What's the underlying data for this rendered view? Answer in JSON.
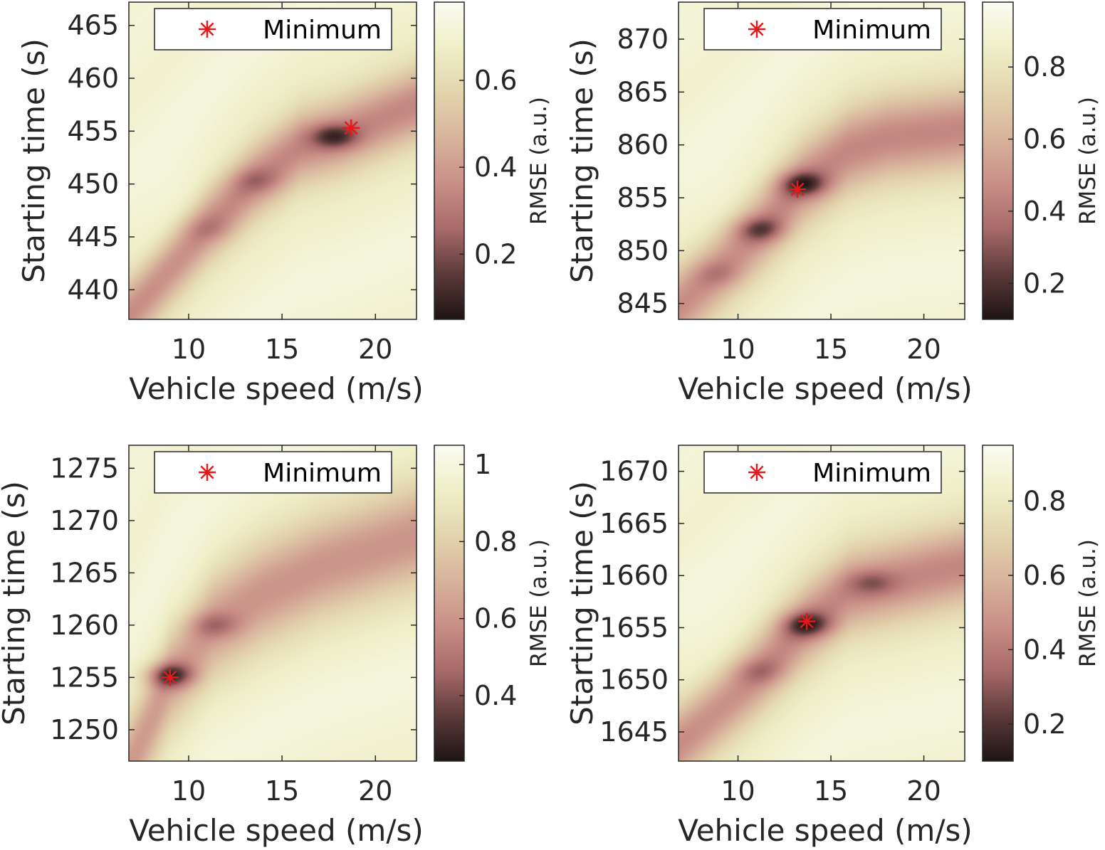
{
  "colors": {
    "marker": "#e31a1c",
    "axis": "#262626",
    "colormap": [
      "#1e1414",
      "#5c3a3a",
      "#a86a6a",
      "#c98f87",
      "#d8b39c",
      "#e3d4ad",
      "#efefc8",
      "#fbfbf2"
    ]
  },
  "chart_data": [
    {
      "type": "heatmap",
      "xlabel": "Vehicle speed (m/s)",
      "ylabel": "Starting time (s)",
      "colorbar_label": "RMSE (a.u.)",
      "xlim": [
        6.8,
        22.2
      ],
      "ylim": [
        437.2,
        467.2
      ],
      "xticks": [
        10,
        15,
        20
      ],
      "yticks": [
        440,
        445,
        450,
        455,
        460,
        465
      ],
      "colorbar_range": [
        0.05,
        0.78
      ],
      "colorbar_ticks": [
        0.2,
        0.4,
        0.6
      ],
      "valley": {
        "points": [
          [
            8.5,
            441
          ],
          [
            11,
            446
          ],
          [
            13.5,
            450.2
          ],
          [
            16,
            453.5
          ],
          [
            18,
            454.5
          ],
          [
            22.2,
            457.5
          ]
        ],
        "width_s": 5.5,
        "depth": 0.55
      },
      "local_minima": [
        {
          "x": 17.8,
          "y": 454.5,
          "depth": 0.35
        },
        {
          "x": 13.6,
          "y": 450.3,
          "depth": 0.15
        },
        {
          "x": 11.1,
          "y": 445.8,
          "depth": 0.1
        }
      ],
      "minimum": {
        "x": 18.7,
        "y": 455.3
      },
      "legend": {
        "label": "Minimum",
        "position": "top"
      }
    },
    {
      "type": "heatmap",
      "xlabel": "Vehicle speed (m/s)",
      "ylabel": "Starting time (s)",
      "colorbar_label": "RMSE (a.u.)",
      "xlim": [
        6.8,
        22.2
      ],
      "ylim": [
        843.5,
        873.5
      ],
      "xticks": [
        10,
        15,
        20
      ],
      "yticks": [
        845,
        850,
        855,
        860,
        865,
        870
      ],
      "colorbar_range": [
        0.1,
        0.98
      ],
      "colorbar_ticks": [
        0.2,
        0.4,
        0.6,
        0.8
      ],
      "valley": {
        "points": [
          [
            8.5,
            847.5
          ],
          [
            11.2,
            852
          ],
          [
            13.5,
            856.3
          ],
          [
            16,
            859.5
          ],
          [
            18,
            860.6
          ],
          [
            22.2,
            861.5
          ]
        ],
        "width_s": 6,
        "depth": 0.55
      },
      "local_minima": [
        {
          "x": 13.5,
          "y": 856.3,
          "depth": 0.4
        },
        {
          "x": 11.2,
          "y": 852,
          "depth": 0.3
        },
        {
          "x": 8.9,
          "y": 847.8,
          "depth": 0.12
        }
      ],
      "minimum": {
        "x": 13.2,
        "y": 855.8
      },
      "legend": {
        "label": "Minimum",
        "position": "top"
      }
    },
    {
      "type": "heatmap",
      "xlabel": "Vehicle speed (m/s)",
      "ylabel": "Starting time (s)",
      "colorbar_label": "RMSE (a.u.)",
      "xlim": [
        6.8,
        22.2
      ],
      "ylim": [
        1247,
        1277.2
      ],
      "xticks": [
        10,
        15,
        20
      ],
      "yticks": [
        1250,
        1255,
        1260,
        1265,
        1270,
        1275
      ],
      "colorbar_range": [
        0.23,
        1.05
      ],
      "colorbar_ticks": [
        0.4,
        0.6,
        0.8,
        1
      ],
      "valley": {
        "points": [
          [
            7.2,
            1248
          ],
          [
            9,
            1255
          ],
          [
            11.3,
            1260
          ],
          [
            14,
            1263
          ],
          [
            17,
            1265.5
          ],
          [
            22.2,
            1268.5
          ]
        ],
        "width_s": 7,
        "depth": 0.5
      },
      "local_minima": [
        {
          "x": 9,
          "y": 1255.2,
          "depth": 0.45
        },
        {
          "x": 11.4,
          "y": 1260,
          "depth": 0.2
        }
      ],
      "minimum": {
        "x": 9,
        "y": 1255
      },
      "legend": {
        "label": "Minimum",
        "position": "top"
      }
    },
    {
      "type": "heatmap",
      "xlabel": "Vehicle speed (m/s)",
      "ylabel": "Starting time (s)",
      "colorbar_label": "RMSE (a.u.)",
      "xlim": [
        6.8,
        22.2
      ],
      "ylim": [
        1642.2,
        1672.5
      ],
      "xticks": [
        10,
        15,
        20
      ],
      "yticks": [
        1645,
        1650,
        1655,
        1660,
        1665,
        1670
      ],
      "colorbar_range": [
        0.1,
        0.95
      ],
      "colorbar_ticks": [
        0.2,
        0.4,
        0.6,
        0.8
      ],
      "valley": {
        "points": [
          [
            8.5,
            1646.5
          ],
          [
            11,
            1650.5
          ],
          [
            13.7,
            1655.3
          ],
          [
            16,
            1658.5
          ],
          [
            18,
            1659.3
          ],
          [
            22.2,
            1661
          ]
        ],
        "width_s": 6,
        "depth": 0.55
      },
      "local_minima": [
        {
          "x": 13.7,
          "y": 1655.3,
          "depth": 0.4
        },
        {
          "x": 17.2,
          "y": 1659.3,
          "depth": 0.2
        },
        {
          "x": 11.2,
          "y": 1650.8,
          "depth": 0.15
        }
      ],
      "minimum": {
        "x": 13.7,
        "y": 1655.6
      },
      "legend": {
        "label": "Minimum",
        "position": "top"
      }
    }
  ]
}
